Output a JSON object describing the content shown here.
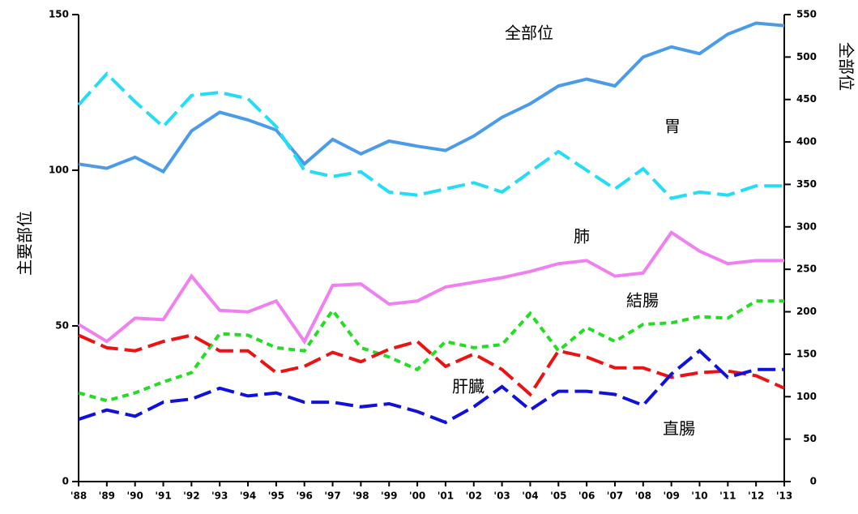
{
  "chart_data": {
    "type": "line",
    "y_label": "主要部位",
    "y2_label": "全部位",
    "categories": [
      "'88",
      "'89",
      "'90",
      "'91",
      "'92",
      "'93",
      "'94",
      "'95",
      "'96",
      "'97",
      "'98",
      "'99",
      "'00",
      "'01",
      "'02",
      "'03",
      "'04",
      "'05",
      "'06",
      "'07",
      "'08",
      "'09",
      "'10",
      "'11",
      "'12",
      "'13"
    ],
    "ylim": [
      0,
      150
    ],
    "yticks": [
      0,
      50,
      100,
      150
    ],
    "y2lim": [
      0,
      550
    ],
    "y2ticks": [
      0,
      50,
      100,
      150,
      200,
      250,
      300,
      350,
      400,
      450,
      500,
      550
    ],
    "series": [
      {
        "name": "全部位",
        "color": "#4a9be8",
        "style": "solid",
        "axis": "y2",
        "values": [
          374,
          369,
          382,
          365,
          413,
          435,
          426,
          414,
          374,
          403,
          386,
          401,
          395,
          390,
          407,
          429,
          445,
          466,
          474,
          466,
          500,
          512,
          504,
          527,
          540,
          537
        ]
      },
      {
        "name": "胃",
        "color": "#22ddf5",
        "style": "dashed",
        "values": [
          121,
          131,
          122,
          114,
          124,
          125,
          123,
          114,
          100,
          98,
          99.5,
          93,
          92,
          94,
          96,
          93,
          99.5,
          106,
          100,
          94,
          100.5,
          91,
          93,
          92,
          95,
          95
        ]
      },
      {
        "name": "肺",
        "color": "#f080f0",
        "style": "solid",
        "values": [
          50.5,
          45,
          52.5,
          52,
          66,
          55,
          54.5,
          58,
          45,
          63,
          63.5,
          57,
          58,
          62.5,
          64,
          65.5,
          67.5,
          70,
          71,
          66,
          67,
          80,
          74,
          70,
          71,
          71
        ]
      },
      {
        "name": "結腸",
        "color": "#22dd22",
        "style": "dotted",
        "values": [
          28.5,
          26,
          28.5,
          32,
          35,
          47.5,
          47,
          43,
          42,
          55,
          43,
          40,
          36,
          45,
          43,
          44,
          54,
          42,
          49.5,
          45,
          50.5,
          51,
          53,
          52.5,
          58,
          58
        ]
      },
      {
        "name": "肝臓",
        "color": "#ee1111",
        "style": "dashed",
        "values": [
          47,
          43,
          42,
          45,
          47,
          42,
          42,
          35,
          37,
          41.5,
          38.5,
          42.5,
          45,
          37,
          41,
          36,
          28,
          42,
          40,
          36.5,
          36.5,
          33.5,
          35,
          35.5,
          34,
          30
        ]
      },
      {
        "name": "直腸",
        "color": "#1111dd",
        "style": "dashed",
        "values": [
          20,
          23,
          21,
          25.5,
          26.5,
          30,
          27.5,
          28.5,
          25.5,
          25.5,
          24,
          25,
          22.5,
          19,
          24,
          30.5,
          23,
          29,
          29,
          28,
          24.5,
          34.5,
          42,
          33.5,
          36,
          36
        ]
      }
    ]
  }
}
